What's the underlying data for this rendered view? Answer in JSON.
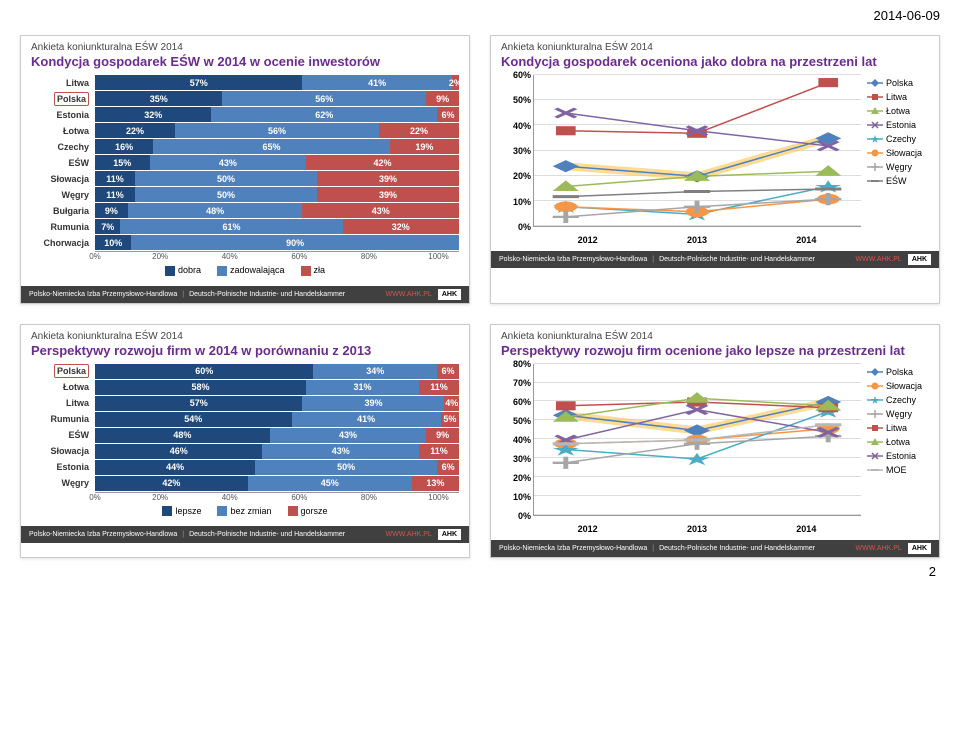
{
  "date": "2014-06-09",
  "page_number": "2",
  "survey_label": "Ankieta koniunkturalna EŚW 2014",
  "footer": {
    "left1": "Polsko-Niemiecka Izba Przemysłowo-Handlowa",
    "left2": "Deutsch-Polnische Industrie- und Handelskammer",
    "url": "WWW.AHK.PL",
    "badge": "AHK"
  },
  "colors": {
    "seg1": "#1f497d",
    "seg2": "#4f81bd",
    "seg3": "#c0504d",
    "seg_txt": "#ffffff",
    "seg3_txt": "#ffffff",
    "series": {
      "Polska": "#4f81bd",
      "Litwa": "#c0504d",
      "Łotwa": "#9bbb59",
      "Estonia": "#8064a2",
      "Czechy": "#4bacc6",
      "Słowacja": "#f79646",
      "Węgry": "#a6a6a6",
      "EŚW": "#7f7f7f",
      "MOE": "#b7b7b7"
    },
    "markers": {
      "Polska": "diamond",
      "Litwa": "square",
      "Łotwa": "triangle",
      "Estonia": "x",
      "Czechy": "star",
      "Słowacja": "circle",
      "Węgry": "plus",
      "EŚW": "dash",
      "MOE": "dash"
    }
  },
  "chart1": {
    "title": "Kondycja gospodarek EŚW w 2014 w ocenie inwestorów",
    "categories": [
      "Litwa",
      "Polska",
      "Estonia",
      "Łotwa",
      "Czechy",
      "EŚW",
      "Słowacja",
      "Węgry",
      "Bułgaria",
      "Rumunia",
      "Chorwacja"
    ],
    "series_labels": [
      "dobra",
      "zadowalająca",
      "zła"
    ],
    "data": [
      [
        57,
        41,
        2
      ],
      [
        35,
        56,
        9
      ],
      [
        32,
        62,
        6
      ],
      [
        22,
        56,
        22
      ],
      [
        16,
        65,
        19
      ],
      [
        15,
        43,
        42
      ],
      [
        11,
        50,
        39
      ],
      [
        11,
        50,
        39
      ],
      [
        9,
        48,
        43
      ],
      [
        7,
        61,
        32
      ],
      [
        10,
        90,
        0
      ]
    ],
    "x_ticks": [
      "0%",
      "20%",
      "40%",
      "60%",
      "80%",
      "100%"
    ],
    "highlight": "Polska"
  },
  "chart2": {
    "title": "Kondycja gospodarek oceniona jako dobra na przestrzeni lat",
    "y_ticks": [
      "0%",
      "10%",
      "20%",
      "30%",
      "40%",
      "50%",
      "60%"
    ],
    "ymax": 60,
    "x_labels": [
      "2012",
      "2013",
      "2014"
    ],
    "series": [
      "Polska",
      "Litwa",
      "Łotwa",
      "Estonia",
      "Czechy",
      "Słowacja",
      "Węgry",
      "EŚW"
    ],
    "data": {
      "Polska": [
        24,
        20,
        35
      ],
      "Litwa": [
        38,
        37,
        57
      ],
      "Łotwa": [
        16,
        20,
        22
      ],
      "Estonia": [
        45,
        38,
        32
      ],
      "Czechy": [
        8,
        5,
        16
      ],
      "Słowacja": [
        8,
        6,
        11
      ],
      "Węgry": [
        4,
        8,
        11
      ],
      "EŚW": [
        12,
        14,
        15
      ]
    },
    "highlight": "Polska"
  },
  "chart3": {
    "title": "Perspektywy rozwoju firm w 2014 w porównaniu z 2013",
    "categories": [
      "Polska",
      "Łotwa",
      "Litwa",
      "Rumunia",
      "EŚW",
      "Słowacja",
      "Estonia",
      "Węgry"
    ],
    "series_labels": [
      "lepsze",
      "bez zmian",
      "gorsze"
    ],
    "data": [
      [
        60,
        34,
        6
      ],
      [
        58,
        31,
        11
      ],
      [
        57,
        39,
        4
      ],
      [
        54,
        41,
        5
      ],
      [
        48,
        43,
        9
      ],
      [
        46,
        43,
        11
      ],
      [
        44,
        50,
        6
      ],
      [
        42,
        45,
        13
      ]
    ],
    "x_ticks": [
      "0%",
      "20%",
      "40%",
      "60%",
      "80%",
      "100%"
    ],
    "highlight": "Polska"
  },
  "chart4": {
    "title": "Perspektywy rozwoju firm ocenione jako lepsze na przestrzeni lat",
    "y_ticks": [
      "0%",
      "10%",
      "20%",
      "30%",
      "40%",
      "50%",
      "60%",
      "70%",
      "80%"
    ],
    "ymax": 80,
    "x_labels": [
      "2012",
      "2013",
      "2014"
    ],
    "series": [
      "Polska",
      "Słowacja",
      "Czechy",
      "Węgry",
      "Litwa",
      "Łotwa",
      "Estonia",
      "MOE"
    ],
    "data": {
      "Polska": [
        53,
        45,
        60
      ],
      "Słowacja": [
        38,
        40,
        46
      ],
      "Czechy": [
        35,
        30,
        55
      ],
      "Węgry": [
        28,
        38,
        42
      ],
      "Litwa": [
        58,
        60,
        57
      ],
      "Łotwa": [
        52,
        62,
        58
      ],
      "Estonia": [
        40,
        56,
        44
      ],
      "MOE": [
        38,
        40,
        48
      ]
    },
    "highlight": "Polska"
  }
}
